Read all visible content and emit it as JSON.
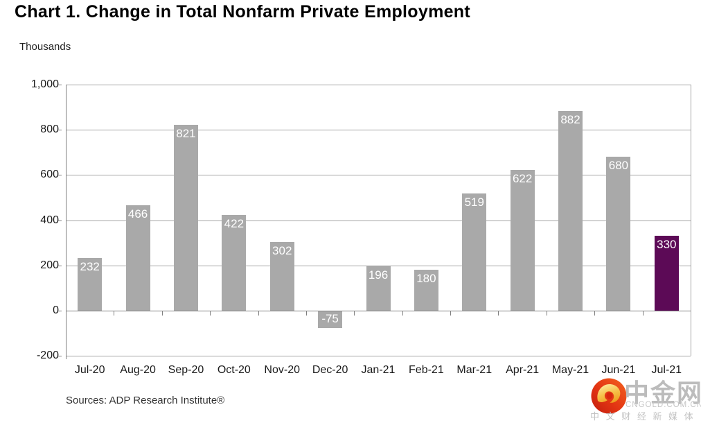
{
  "page": {
    "title": "Chart 1. Change in Total Nonfarm Private Employment",
    "units_label": "Thousands",
    "source_note": "Sources: ADP Research Institute®"
  },
  "chart_data": {
    "type": "bar",
    "title": "Chart 1. Change in Total Nonfarm Private Employment",
    "ylabel": "Thousands",
    "categories": [
      "Jul-20",
      "Aug-20",
      "Sep-20",
      "Oct-20",
      "Nov-20",
      "Dec-20",
      "Jan-21",
      "Feb-21",
      "Mar-21",
      "Apr-21",
      "May-21",
      "Jun-21",
      "Jul-21"
    ],
    "values": [
      232,
      466,
      821,
      422,
      302,
      -75,
      196,
      180,
      519,
      622,
      882,
      680,
      330
    ],
    "value_labels": [
      "232",
      "466",
      "821",
      "422",
      "302",
      "-75",
      "196",
      "180",
      "519",
      "622",
      "882",
      "680",
      "330"
    ],
    "ylim": [
      -200,
      1000
    ],
    "yticks": [
      {
        "v": -200,
        "label": "-200"
      },
      {
        "v": 0,
        "label": "0"
      },
      {
        "v": 200,
        "label": "200"
      },
      {
        "v": 400,
        "label": "400"
      },
      {
        "v": 600,
        "label": "600"
      },
      {
        "v": 800,
        "label": "800"
      },
      {
        "v": 1000,
        "label": "1,000"
      }
    ],
    "grid": true,
    "legend": "none",
    "bar_color_default": "#a9a9a9",
    "bar_color_highlight": "#5c0a56",
    "highlight_index": 12,
    "value_label_color": "#ffffff",
    "gridline_color": "#a3a3a3",
    "axis_color": "#7f7f7f"
  },
  "watermark": {
    "brand_cn": "中金网",
    "domain": "CNGOLD.COM.CN",
    "tagline_cn": "中 文 财 经 新 媒 体",
    "logo_red_dark": "#c81e10",
    "logo_red_bright": "#f25a1c",
    "logo_gold_light": "#fde58a",
    "logo_gold_dark": "#efa31f"
  }
}
